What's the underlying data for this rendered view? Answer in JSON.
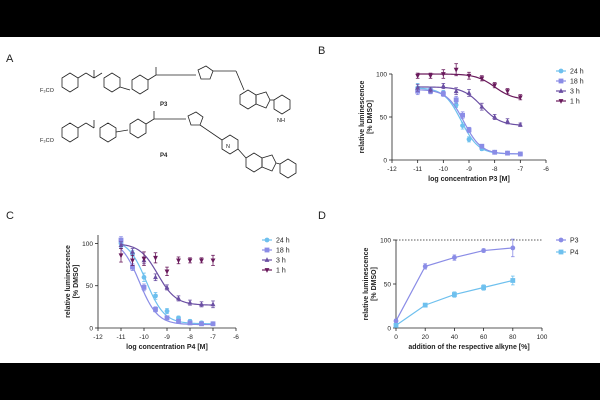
{
  "figure": {
    "panel_labels": [
      "A",
      "B",
      "C",
      "D"
    ]
  },
  "chemistry": {
    "compound_labels": [
      "P3",
      "P4"
    ],
    "group_texts": [
      "F₃CO",
      "F₃CO",
      "H",
      "N",
      "O",
      "NH"
    ]
  },
  "chart_data": [
    {
      "panel": "B",
      "type": "line",
      "xlabel": "log concentration P3 [M]",
      "ylabel_line1": "relative luminescence",
      "ylabel_line2": "[% DMSO]",
      "xlim": [
        -12,
        -6
      ],
      "ylim": [
        0,
        100
      ],
      "xticks": [
        "-12",
        "-11",
        "-10",
        "-9",
        "-8",
        "-7",
        "-6"
      ],
      "yticks": [
        "0",
        "50",
        "100"
      ],
      "reference_line": null,
      "series": [
        {
          "name": "24 h",
          "color": "#6ec0ee",
          "marker": "circle",
          "x": [
            -11,
            -10.5,
            -10,
            -9.5,
            -9.25,
            -9,
            -8.5,
            -8,
            -7.5,
            -7
          ],
          "y": [
            84,
            82,
            78,
            64,
            40,
            24,
            13,
            9,
            8,
            7
          ],
          "err": [
            5,
            3,
            3,
            3,
            4,
            3,
            2,
            2,
            2,
            1
          ],
          "fit": {
            "top": 84,
            "bottom": 7,
            "logec50": -9.3,
            "hill": 1.3
          }
        },
        {
          "name": "18 h",
          "color": "#8a8ce6",
          "marker": "square",
          "x": [
            -11,
            -10.5,
            -10,
            -9.5,
            -9.25,
            -9,
            -8.5,
            -8,
            -7.5,
            -7
          ],
          "y": [
            80,
            80,
            77,
            70,
            52,
            35,
            16,
            9,
            8,
            7
          ],
          "err": [
            4,
            3,
            3,
            4,
            4,
            3,
            2,
            2,
            1,
            1
          ],
          "fit": {
            "top": 82,
            "bottom": 7,
            "logec50": -9.2,
            "hill": 1.3
          }
        },
        {
          "name": "3 h",
          "color": "#6b4fa3",
          "marker": "triangle-up",
          "x": [
            -11,
            -10.5,
            -10,
            -9.5,
            -9,
            -8.5,
            -8,
            -7.5,
            -7
          ],
          "y": [
            84,
            82,
            86,
            80,
            78,
            62,
            50,
            45,
            41
          ],
          "err": [
            4,
            3,
            3,
            4,
            4,
            4,
            3,
            3,
            2
          ],
          "fit": {
            "top": 85,
            "bottom": 40,
            "logec50": -8.5,
            "hill": 1.2
          }
        },
        {
          "name": "1 h",
          "color": "#6a1a5c",
          "marker": "triangle-down",
          "x": [
            -11,
            -10.5,
            -10,
            -9.5,
            -9,
            -8.5,
            -8,
            -7.5,
            -7
          ],
          "y": [
            98,
            98,
            100,
            105,
            98,
            95,
            87,
            80,
            73
          ],
          "err": [
            3,
            3,
            5,
            7,
            4,
            3,
            3,
            3,
            3
          ],
          "fit": {
            "top": 100,
            "bottom": 70,
            "logec50": -8.0,
            "hill": 1.2
          }
        }
      ]
    },
    {
      "panel": "C",
      "type": "line",
      "xlabel": "log concentration P4 [M]",
      "ylabel_line1": "relative luminescence",
      "ylabel_line2": "[% DMSO]",
      "xlim": [
        -12,
        -6
      ],
      "ylim": [
        0,
        110
      ],
      "xticks": [
        "-12",
        "-11",
        "-10",
        "-9",
        "-8",
        "-7",
        "-6"
      ],
      "yticks": [
        "0",
        "50",
        "100"
      ],
      "reference_line": null,
      "series": [
        {
          "name": "24 h",
          "color": "#6ec0ee",
          "marker": "circle",
          "x": [
            -11,
            -10.5,
            -10,
            -9.5,
            -9,
            -8.5,
            -8,
            -7.5,
            -7
          ],
          "y": [
            100,
            88,
            60,
            38,
            20,
            12,
            8,
            6,
            5
          ],
          "err": [
            5,
            4,
            5,
            4,
            3,
            2,
            2,
            2,
            1
          ],
          "fit": {
            "top": 105,
            "bottom": 5,
            "logec50": -9.9,
            "hill": 1.1
          }
        },
        {
          "name": "18 h",
          "color": "#8a8ce6",
          "marker": "square",
          "x": [
            -11,
            -10.5,
            -10,
            -9.5,
            -9,
            -8.5,
            -8,
            -7.5,
            -7
          ],
          "y": [
            104,
            72,
            48,
            22,
            12,
            8,
            6,
            5,
            5
          ],
          "err": [
            4,
            4,
            4,
            3,
            2,
            2,
            1,
            1,
            1
          ],
          "fit": {
            "top": 105,
            "bottom": 4,
            "logec50": -10.2,
            "hill": 1.1
          }
        },
        {
          "name": "3 h",
          "color": "#6b4fa3",
          "marker": "triangle-up",
          "x": [
            -11,
            -10.5,
            -10,
            -9.5,
            -9,
            -8.5,
            -8,
            -7.5,
            -7
          ],
          "y": [
            98,
            90,
            80,
            60,
            48,
            35,
            30,
            28,
            28
          ],
          "err": [
            4,
            4,
            4,
            4,
            3,
            3,
            3,
            3,
            4
          ],
          "fit": {
            "top": 100,
            "bottom": 27,
            "logec50": -9.4,
            "hill": 1.1
          }
        },
        {
          "name": "1 h",
          "color": "#6a1a5c",
          "marker": "triangle-down",
          "x": [
            -11,
            -10.5,
            -10,
            -9.5,
            -9,
            -8.5,
            -8,
            -7.5,
            -7
          ],
          "y": [
            86,
            80,
            82,
            83,
            67,
            80,
            80,
            80,
            80
          ],
          "err": [
            8,
            6,
            8,
            6,
            5,
            4,
            3,
            3,
            6
          ],
          "fit": null
        }
      ]
    },
    {
      "panel": "D",
      "type": "line",
      "xlabel": "addition of the respective alkyne [%]",
      "ylabel_line1": "relative luminescence",
      "ylabel_line2": "[% DMSO]",
      "xlim": [
        0,
        100
      ],
      "ylim": [
        0,
        100
      ],
      "xticks": [
        "0",
        "20",
        "40",
        "60",
        "80",
        "100"
      ],
      "yticks": [
        "0",
        "50",
        "100"
      ],
      "reference_line": 100,
      "series": [
        {
          "name": "P3",
          "color": "#8a8ce6",
          "marker": "circle",
          "x": [
            0,
            20,
            40,
            60,
            80
          ],
          "y": [
            8,
            70,
            80,
            88,
            91
          ],
          "err": [
            2,
            3,
            3,
            2,
            10
          ],
          "fit": null
        },
        {
          "name": "P4",
          "color": "#6ec0ee",
          "marker": "square",
          "x": [
            0,
            20,
            40,
            60,
            80
          ],
          "y": [
            3,
            26,
            38,
            46,
            54
          ],
          "err": [
            1,
            2,
            3,
            3,
            5
          ],
          "fit": null
        }
      ]
    }
  ]
}
